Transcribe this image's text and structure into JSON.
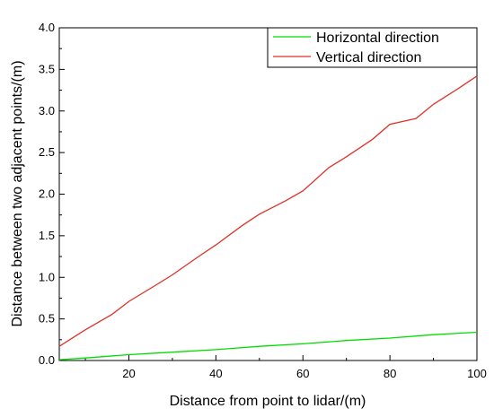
{
  "chart_data": {
    "type": "line",
    "xlabel": "Distance from point to lidar/(m)",
    "ylabel": "Distance between two adjacent  points/(m)",
    "xlim": [
      4,
      100
    ],
    "ylim": [
      0,
      4.0
    ],
    "x_ticks": [
      20,
      40,
      60,
      80,
      100
    ],
    "x_tick_labels": [
      "20",
      "40",
      "60",
      "80",
      "100"
    ],
    "y_ticks": [
      0,
      0.5,
      1.0,
      1.5,
      2.0,
      2.5,
      3.0,
      3.5,
      4.0
    ],
    "y_tick_labels": [
      "0.0",
      "0.5",
      "1.0",
      "1.5",
      "2.0",
      "2.5",
      "3.0",
      "3.5",
      "4.0"
    ],
    "grid": false,
    "legend_position": "top-right",
    "series": [
      {
        "name": "Horizontal direction",
        "color": "#00dd00",
        "x": [
          4,
          10,
          20,
          30,
          40,
          50,
          60,
          70,
          80,
          90,
          100
        ],
        "y": [
          0.01,
          0.03,
          0.07,
          0.1,
          0.13,
          0.17,
          0.2,
          0.24,
          0.27,
          0.31,
          0.34
        ]
      },
      {
        "name": "Vertical direction",
        "color": "#e0302a",
        "x": [
          4,
          10,
          16,
          20,
          26,
          30,
          36,
          40,
          46,
          50,
          56,
          60,
          66,
          70,
          76,
          80,
          86,
          90,
          96,
          100
        ],
        "y": [
          0.17,
          0.37,
          0.55,
          0.71,
          0.9,
          1.03,
          1.25,
          1.39,
          1.62,
          1.76,
          1.92,
          2.04,
          2.32,
          2.45,
          2.66,
          2.84,
          2.91,
          3.08,
          3.28,
          3.42
        ]
      }
    ]
  }
}
